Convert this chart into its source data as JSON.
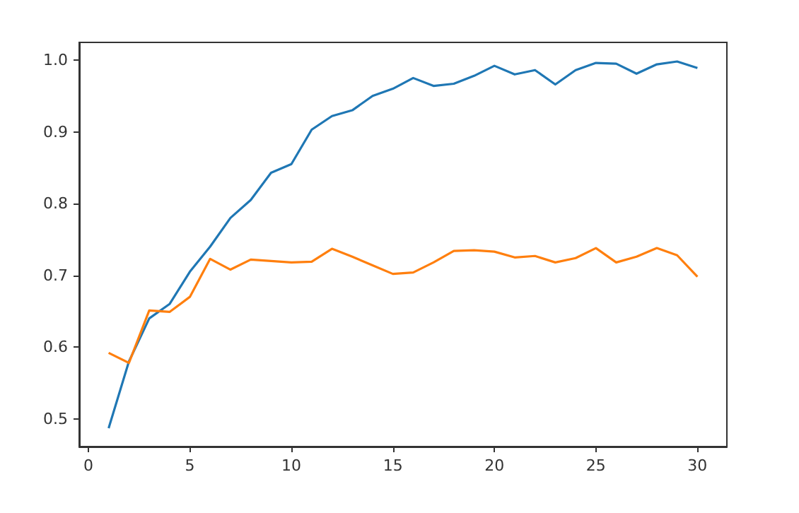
{
  "chart_data": {
    "type": "line",
    "x": [
      1,
      2,
      3,
      4,
      5,
      6,
      7,
      8,
      9,
      10,
      11,
      12,
      13,
      14,
      15,
      16,
      17,
      18,
      19,
      20,
      21,
      22,
      23,
      24,
      25,
      26,
      27,
      28,
      29,
      30
    ],
    "series": [
      {
        "color": "#1f77b4",
        "values": [
          0.487,
          0.58,
          0.64,
          0.66,
          0.705,
          0.74,
          0.78,
          0.805,
          0.843,
          0.855,
          0.903,
          0.922,
          0.93,
          0.95,
          0.96,
          0.975,
          0.964,
          0.967,
          0.978,
          0.992,
          0.98,
          0.986,
          0.966,
          0.986,
          0.996,
          0.995,
          0.981,
          0.994,
          0.998,
          0.989
        ]
      },
      {
        "color": "#ff7f0e",
        "values": [
          0.592,
          0.578,
          0.651,
          0.649,
          0.67,
          0.723,
          0.708,
          0.722,
          0.72,
          0.718,
          0.719,
          0.737,
          0.726,
          0.714,
          0.702,
          0.704,
          0.718,
          0.734,
          0.735,
          0.733,
          0.725,
          0.727,
          0.718,
          0.724,
          0.738,
          0.718,
          0.726,
          0.738,
          0.728,
          0.698
        ]
      }
    ],
    "xlim": [
      -0.45,
      31.45
    ],
    "xticks": [
      0,
      5,
      10,
      15,
      20,
      25,
      30
    ],
    "ylim": [
      0.4614,
      1.0246
    ],
    "yticks": [
      {
        "value": 0.5,
        "label": "0.5"
      },
      {
        "value": 0.6,
        "label": "0.6"
      },
      {
        "value": 0.7,
        "label": "0.7"
      },
      {
        "value": 0.8,
        "label": "0.8"
      },
      {
        "value": 0.9,
        "label": "0.9"
      },
      {
        "value": 1.0,
        "label": "1.0"
      }
    ],
    "grid": false,
    "marker": "none",
    "line_style": "solid"
  }
}
